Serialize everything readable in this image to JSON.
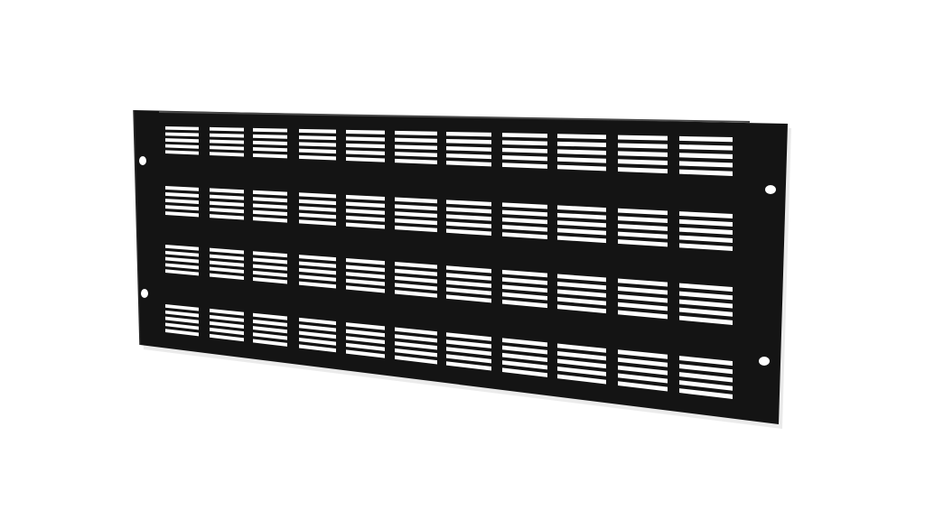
{
  "image": {
    "subject": "rack-panel",
    "panel_color": "#141414",
    "edge_color": "#3a3a3a",
    "slot_color": "#ffffff",
    "background_color": "#ffffff",
    "slot_columns": 11,
    "slot_rows": 4,
    "slots_per_group": 5,
    "mounting_holes": 4
  }
}
